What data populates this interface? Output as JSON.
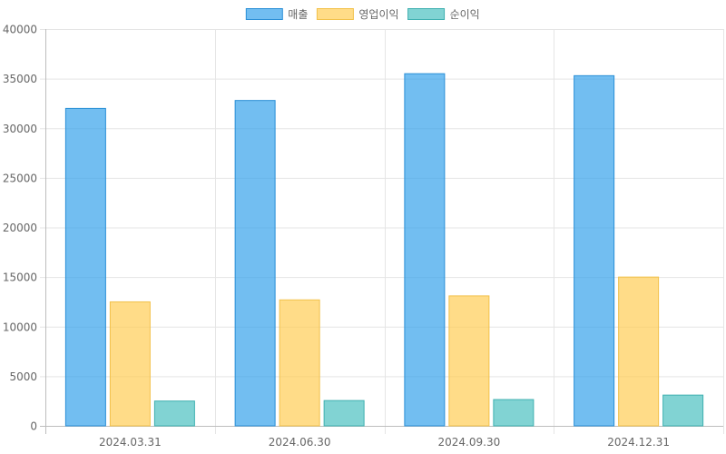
{
  "chart_data": {
    "type": "bar",
    "categories": [
      "2024.03.31",
      "2024.06.30",
      "2024.09.30",
      "2024.12.31"
    ],
    "series": [
      {
        "name": "매출",
        "values": [
          32000,
          32800,
          35500,
          35300
        ],
        "fill": "#36A2EB",
        "stroke": "#2a8fd6"
      },
      {
        "name": "영업이익",
        "values": [
          12500,
          12700,
          13100,
          15000
        ],
        "fill": "#FFCD56",
        "stroke": "#f2c14a"
      },
      {
        "name": "순이익",
        "values": [
          2500,
          2550,
          2650,
          3100
        ],
        "fill": "#4BC0C0",
        "stroke": "#3fb0b0"
      }
    ],
    "y_ticks": [
      0,
      5000,
      10000,
      15000,
      20000,
      25000,
      30000,
      35000,
      40000
    ],
    "ylim": [
      0,
      40000
    ],
    "grid": true,
    "legend_position": "top-center"
  }
}
